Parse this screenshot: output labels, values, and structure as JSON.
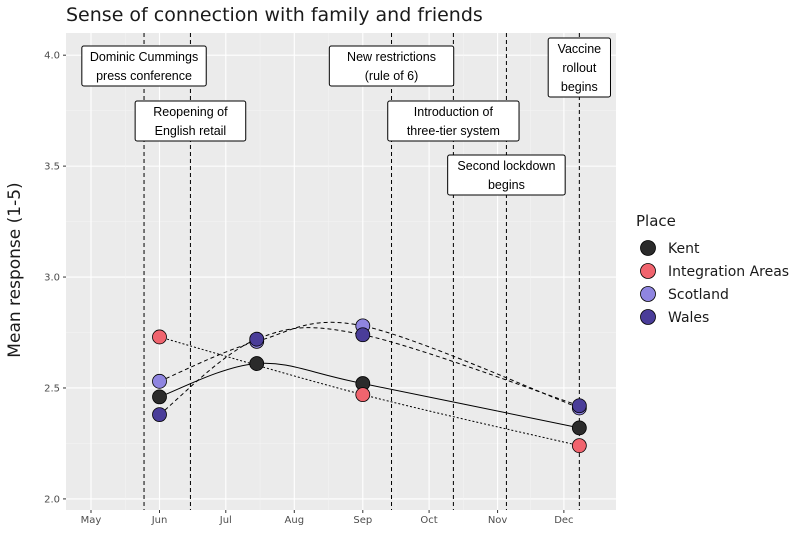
{
  "chart_data": {
    "type": "line",
    "title": "Sense of connection with family and friends",
    "xlabel": "",
    "ylabel": "Mean response (1-5)",
    "x_ticks": [
      "May",
      "Jun",
      "Jul",
      "Aug",
      "Sep",
      "Oct",
      "Nov",
      "Dec"
    ],
    "y_ticks": [
      "2.0",
      "2.5",
      "3.0",
      "3.5",
      "4.0"
    ],
    "ylim": [
      1.95,
      4.1
    ],
    "grid": true,
    "legend": {
      "title": "Place",
      "position": "right"
    },
    "series": [
      {
        "name": "Kent",
        "color": "#2b2b2b",
        "line": "solid",
        "x": [
          "2020-06-01",
          "2020-07-15",
          "2020-09-01",
          "2020-12-08"
        ],
        "y": [
          2.46,
          2.61,
          2.52,
          2.32
        ]
      },
      {
        "name": "Integration Areas",
        "color": "#f0646e",
        "line": "dotted",
        "x": [
          "2020-06-01",
          "2020-09-01",
          "2020-12-08"
        ],
        "y": [
          2.73,
          2.47,
          2.24
        ]
      },
      {
        "name": "Scotland",
        "color": "#8f85e0",
        "line": "dashed",
        "x": [
          "2020-06-01",
          "2020-07-15",
          "2020-09-01",
          "2020-12-08"
        ],
        "y": [
          2.53,
          2.71,
          2.78,
          2.41
        ]
      },
      {
        "name": "Wales",
        "color": "#4a3d99",
        "line": "dashed",
        "x": [
          "2020-06-01",
          "2020-07-15",
          "2020-09-01",
          "2020-12-08"
        ],
        "y": [
          2.38,
          2.72,
          2.74,
          2.42
        ]
      }
    ],
    "events": [
      {
        "date": "2020-05-25",
        "lines": [
          "Dominic Cummings",
          "press conference"
        ]
      },
      {
        "date": "2020-06-15",
        "lines": [
          "Reopening of",
          "English retail"
        ]
      },
      {
        "date": "2020-09-14",
        "lines": [
          "New restrictions",
          "(rule of 6)"
        ]
      },
      {
        "date": "2020-10-12",
        "lines": [
          "Introduction of",
          "three-tier system"
        ]
      },
      {
        "date": "2020-11-05",
        "lines": [
          "Second lockdown",
          "begins"
        ]
      },
      {
        "date": "2020-12-08",
        "lines": [
          "Vaccine",
          "rollout",
          "begins"
        ]
      }
    ]
  }
}
